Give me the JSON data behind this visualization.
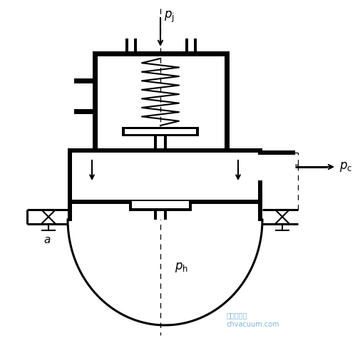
{
  "bg_color": "#ffffff",
  "line_color": "#000000",
  "watermark_color": "#7ab8d8",
  "watermark": "真空技术网\nchvacuum.com",
  "lw": 1.5,
  "lw3": 2.2
}
